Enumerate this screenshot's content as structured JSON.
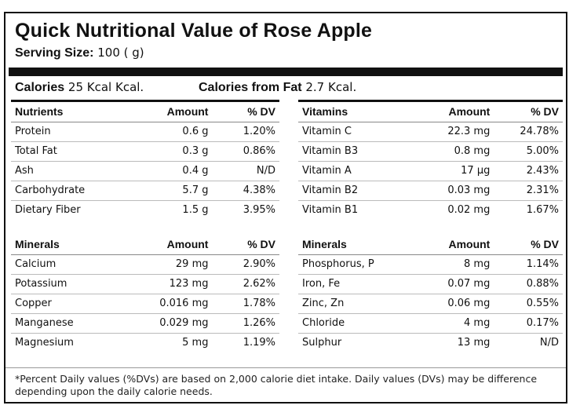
{
  "title": "Quick Nutritional Value of Rose Apple",
  "serving": {
    "label": "Serving Size:",
    "value": "100 ( g)"
  },
  "calories": {
    "label": "Calories",
    "value": "25 Kcal Kcal.",
    "fat_label": "Calories from Fat",
    "fat_value": "2.7 Kcal."
  },
  "nutrients": {
    "headers": [
      "Nutrients",
      "Amount",
      "% DV"
    ],
    "rows": [
      [
        "Protein",
        "0.6 g",
        "1.20%"
      ],
      [
        "Total Fat",
        "0.3 g",
        "0.86%"
      ],
      [
        "Ash",
        "0.4 g",
        "N/D"
      ],
      [
        "Carbohydrate",
        "5.7 g",
        "4.38%"
      ],
      [
        "Dietary Fiber",
        "1.5 g",
        "3.95%"
      ]
    ]
  },
  "vitamins": {
    "headers": [
      "Vitamins",
      "Amount",
      "% DV"
    ],
    "rows": [
      [
        "Vitamin C",
        "22.3 mg",
        "24.78%"
      ],
      [
        "Vitamin B3",
        "0.8 mg",
        "5.00%"
      ],
      [
        "Vitamin A",
        "17 µg",
        "2.43%"
      ],
      [
        "Vitamin B2",
        "0.03 mg",
        "2.31%"
      ],
      [
        "Vitamin B1",
        "0.02 mg",
        "1.67%"
      ]
    ]
  },
  "minerals_left": {
    "headers": [
      "Minerals",
      "Amount",
      "% DV"
    ],
    "rows": [
      [
        "Calcium",
        "29 mg",
        "2.90%"
      ],
      [
        "Potassium",
        "123 mg",
        "2.62%"
      ],
      [
        "Copper",
        "0.016 mg",
        "1.78%"
      ],
      [
        "Manganese",
        "0.029 mg",
        "1.26%"
      ],
      [
        "Magnesium",
        "5 mg",
        "1.19%"
      ]
    ]
  },
  "minerals_right": {
    "headers": [
      "Minerals",
      "Amount",
      "% DV"
    ],
    "rows": [
      [
        "Phosphorus, P",
        "8 mg",
        "1.14%"
      ],
      [
        "Iron, Fe",
        "0.07 mg",
        "0.88%"
      ],
      [
        "Zinc, Zn",
        "0.06 mg",
        "0.55%"
      ],
      [
        "Chloride",
        "4 mg",
        "0.17%"
      ],
      [
        "Sulphur",
        "13 mg",
        "N/D"
      ]
    ]
  },
  "footnote": "*Percent Daily values (%DVs) are based on 2,000 calorie diet intake. Daily values (DVs) may be difference depending upon the daily calorie needs."
}
